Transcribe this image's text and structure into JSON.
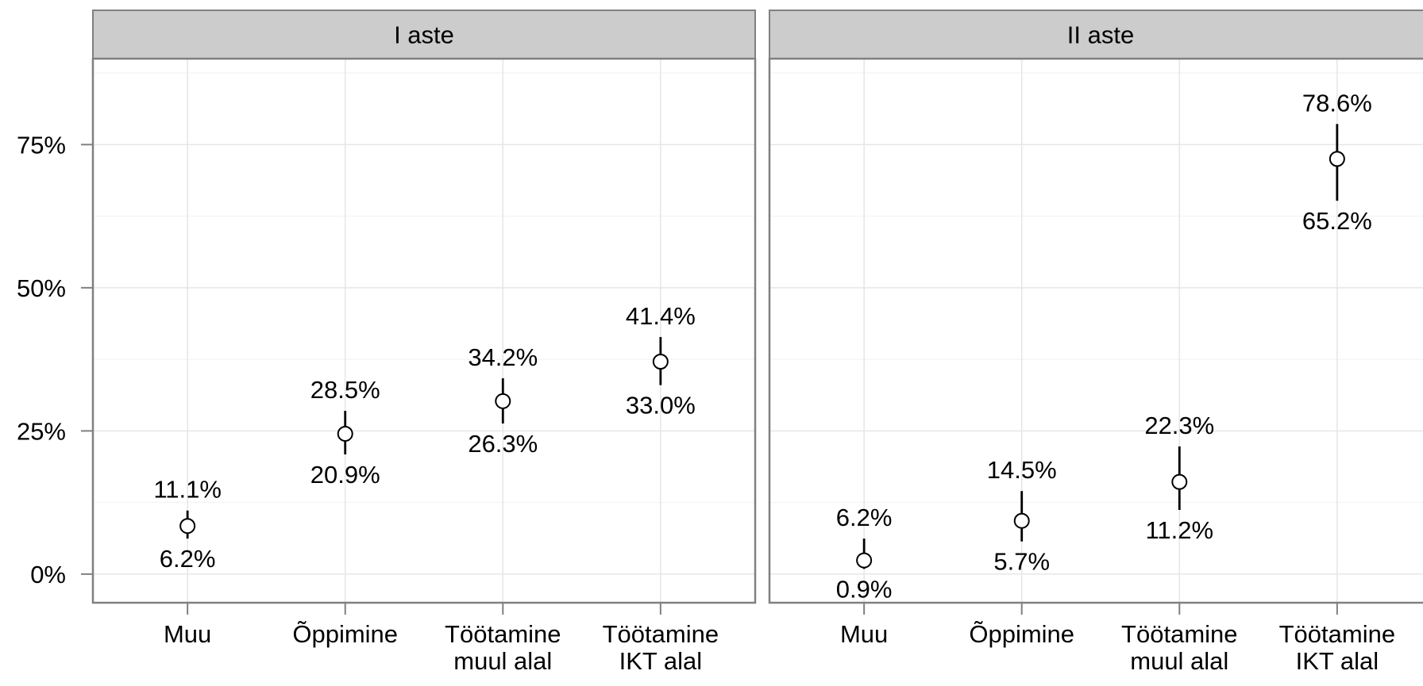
{
  "chart_data": [
    {
      "type": "pointrange",
      "title": "I aste",
      "categories": [
        "Muu",
        "Õppimine",
        "Töötamine\nmuul alal",
        "Töötamine\nIKT alal"
      ],
      "values": [
        8.4,
        24.5,
        30.2,
        37.1
      ],
      "upper": [
        11.1,
        28.5,
        34.2,
        41.4
      ],
      "upper_labels": [
        "11.1%",
        "28.5%",
        "34.2%",
        "41.4%"
      ],
      "lower": [
        6.2,
        20.9,
        26.3,
        33.0
      ],
      "lower_labels": [
        "6.2%",
        "20.9%",
        "26.3%",
        "33.0%"
      ],
      "ylim": [
        -5,
        90
      ],
      "yticks": [
        {
          "value": 0,
          "label": "0%"
        },
        {
          "value": 25,
          "label": "25%"
        },
        {
          "value": 50,
          "label": "50%"
        },
        {
          "value": 75,
          "label": "75%"
        }
      ],
      "grid": true
    },
    {
      "type": "pointrange",
      "title": "II aste",
      "categories": [
        "Muu",
        "Õppimine",
        "Töötamine\nmuul alal",
        "Töötamine\nIKT alal"
      ],
      "values": [
        2.4,
        9.3,
        16.1,
        72.5
      ],
      "upper": [
        6.2,
        14.5,
        22.3,
        78.6
      ],
      "upper_labels": [
        "6.2%",
        "14.5%",
        "22.3%",
        "78.6%"
      ],
      "lower": [
        0.9,
        5.7,
        11.2,
        65.2
      ],
      "lower_labels": [
        "0.9%",
        "5.7%",
        "11.2%",
        "65.2%"
      ],
      "ylim": [
        -5,
        90
      ],
      "grid": true
    }
  ]
}
